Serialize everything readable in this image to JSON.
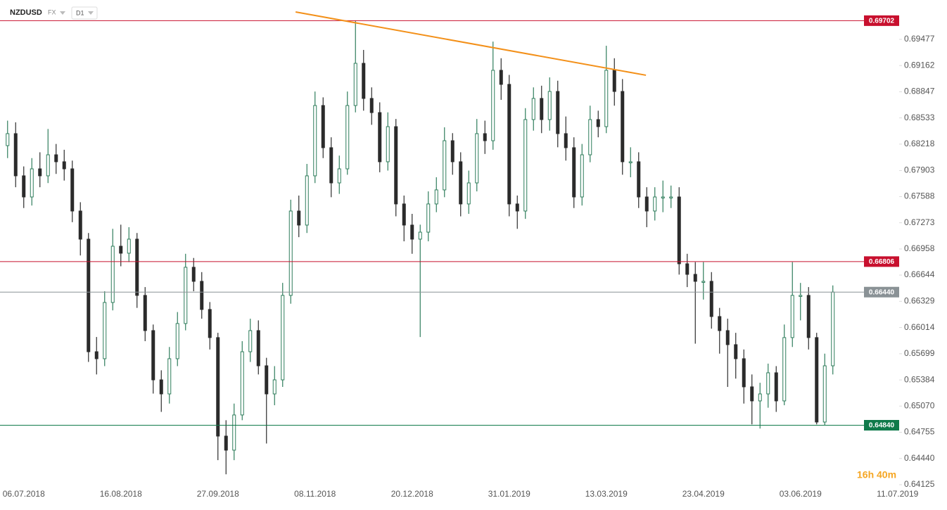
{
  "header": {
    "symbol": "NZDUSD",
    "market": "FX",
    "interval": "D1"
  },
  "countdown": "16h 40m",
  "chart_data": {
    "type": "candlestick",
    "categories": [
      null,
      null,
      "06.07.2018",
      null,
      null,
      null,
      null,
      null,
      null,
      null,
      null,
      null,
      null,
      null,
      "16.08.2018",
      null,
      null,
      null,
      null,
      null,
      null,
      null,
      null,
      null,
      null,
      null,
      "27.09.2018",
      null,
      null,
      null,
      null,
      null,
      null,
      null,
      null,
      null,
      null,
      null,
      "08.11.2018",
      null,
      null,
      null,
      null,
      null,
      null,
      null,
      null,
      null,
      null,
      null,
      "20.12.2018",
      null,
      null,
      null,
      null,
      null,
      null,
      null,
      null,
      null,
      null,
      null,
      "31.01.2019",
      null,
      null,
      null,
      null,
      null,
      null,
      null,
      null,
      null,
      null,
      null,
      "13.03.2019",
      null,
      null,
      null,
      null,
      null,
      null,
      null,
      null,
      null,
      null,
      null,
      "23.04.2019",
      null,
      null,
      null,
      null,
      null,
      null,
      null,
      null,
      null,
      null,
      null,
      "03.06.2019",
      null,
      null,
      null,
      null,
      null,
      null,
      null,
      null,
      null,
      null,
      null,
      "11.07.2019",
      null
    ],
    "open": [
      0.682,
      0.68344,
      0.67837,
      0.67583,
      0.67921,
      0.67837,
      0.6809,
      0.68006,
      0.67921,
      0.67414,
      0.67076,
      0.65723,
      0.65639,
      0.66315,
      0.66991,
      0.66907,
      0.67076,
      0.664,
      0.65977,
      0.65385,
      0.65216,
      0.65639,
      0.66062,
      0.66738,
      0.66569,
      0.66231,
      0.65893,
      0.64709,
      0.6454,
      0.64963,
      0.65723,
      0.65977,
      0.65554,
      0.65216,
      0.65385,
      0.664,
      0.67414,
      0.67245,
      0.67837,
      0.68682,
      0.68175,
      0.67752,
      0.67921,
      0.68682,
      0.69189,
      0.68767,
      0.68597,
      0.68006,
      0.68428,
      0.67499,
      0.67245,
      0.67076,
      0.6716,
      0.67499,
      0.67668,
      0.68259,
      0.68006,
      0.67499,
      0.67752,
      0.68344,
      0.68259,
      0.69105,
      0.68936,
      0.67499,
      0.67414,
      0.68513,
      0.68767,
      0.68513,
      0.68851,
      0.68344,
      0.68175,
      0.67583,
      0.6809,
      0.68513,
      0.68428,
      0.69105,
      0.68851,
      0.68006,
      0.68006,
      0.67583,
      0.67414,
      0.67583,
      0.67583,
      0.67583,
      0.6678,
      0.66653,
      0.66569,
      0.66569,
      0.66146,
      0.65977,
      0.65808,
      0.65639,
      0.65301,
      0.65132,
      0.65216,
      0.6547,
      0.65132,
      0.65893,
      0.664,
      0.664,
      0.65893,
      0.64878,
      0.65554,
      null,
      null,
      null,
      null,
      null,
      null,
      null,
      null,
      null
    ],
    "high": [
      0.685,
      0.6848,
      0.6795,
      0.6805,
      0.6812,
      0.684,
      0.6822,
      0.6815,
      0.6802,
      0.6752,
      0.6715,
      0.659,
      0.6645,
      0.672,
      0.6725,
      0.6722,
      0.6715,
      0.665,
      0.6605,
      0.655,
      0.6578,
      0.662,
      0.669,
      0.6685,
      0.6668,
      0.6632,
      0.6595,
      0.649,
      0.651,
      0.6585,
      0.6612,
      0.661,
      0.6565,
      0.6555,
      0.6655,
      0.6755,
      0.676,
      0.6798,
      0.6885,
      0.6878,
      0.683,
      0.6808,
      0.6885,
      0.697,
      0.6935,
      0.689,
      0.6872,
      0.686,
      0.6852,
      0.676,
      0.6738,
      0.6725,
      0.6765,
      0.6782,
      0.6842,
      0.6835,
      0.6812,
      0.679,
      0.6852,
      0.685,
      0.6945,
      0.6925,
      0.6905,
      0.676,
      0.6865,
      0.689,
      0.6892,
      0.6902,
      0.6898,
      0.6855,
      0.683,
      0.6822,
      0.6868,
      0.6862,
      0.694,
      0.6925,
      0.69,
      0.6818,
      0.6812,
      0.677,
      0.677,
      0.6778,
      0.6772,
      0.677,
      0.669,
      0.668,
      0.668,
      0.6668,
      0.6625,
      0.6612,
      0.6595,
      0.6575,
      0.6545,
      0.6535,
      0.6558,
      0.6555,
      0.6605,
      0.668,
      0.6655,
      0.665,
      0.6595,
      0.657,
      0.6652,
      null,
      null,
      null,
      null,
      null,
      null,
      null,
      null,
      null
    ],
    "low": [
      0.6805,
      0.677,
      0.6745,
      0.6748,
      0.677,
      0.6775,
      0.6786,
      0.6778,
      0.6728,
      0.6688,
      0.656,
      0.6545,
      0.6555,
      0.6622,
      0.6675,
      0.668,
      0.6625,
      0.6585,
      0.6522,
      0.65,
      0.651,
      0.6555,
      0.6598,
      0.6645,
      0.6612,
      0.6575,
      0.6442,
      0.6425,
      0.6442,
      0.649,
      0.656,
      0.6545,
      0.6462,
      0.6508,
      0.653,
      0.663,
      0.671,
      0.6715,
      0.6775,
      0.6805,
      0.6758,
      0.6762,
      0.6785,
      0.686,
      0.6862,
      0.6845,
      0.6788,
      0.679,
      0.6735,
      0.6705,
      0.669,
      0.659,
      0.6705,
      0.674,
      0.6758,
      0.6785,
      0.6735,
      0.6738,
      0.6765,
      0.681,
      0.6815,
      0.6875,
      0.6735,
      0.672,
      0.6732,
      0.6838,
      0.6835,
      0.6838,
      0.6818,
      0.6802,
      0.6745,
      0.6748,
      0.68,
      0.683,
      0.6835,
      0.6868,
      0.6785,
      0.6782,
      0.6745,
      0.6722,
      0.673,
      0.674,
      0.6745,
      0.6665,
      0.665,
      0.6582,
      0.6635,
      0.66,
      0.657,
      0.653,
      0.654,
      0.651,
      0.6485,
      0.648,
      0.6505,
      0.65,
      0.6508,
      0.6578,
      0.661,
      0.6575,
      0.6485,
      0.6484,
      0.6545,
      null,
      null,
      null,
      null,
      null,
      null,
      null,
      null,
      null
    ],
    "close": [
      0.68344,
      0.67837,
      0.67583,
      0.67921,
      0.67837,
      0.6809,
      0.68006,
      0.67921,
      0.67414,
      0.67076,
      0.65723,
      0.65639,
      0.66315,
      0.66991,
      0.66907,
      0.67076,
      0.664,
      0.65977,
      0.65385,
      0.65216,
      0.65639,
      0.66062,
      0.66738,
      0.66569,
      0.66231,
      0.65893,
      0.64709,
      0.6454,
      0.64963,
      0.65723,
      0.65977,
      0.65554,
      0.65216,
      0.65385,
      0.664,
      0.67414,
      0.67245,
      0.67837,
      0.68682,
      0.68175,
      0.67752,
      0.67921,
      0.68682,
      0.69189,
      0.68767,
      0.68597,
      0.68006,
      0.68428,
      0.67499,
      0.67245,
      0.67076,
      0.6716,
      0.67499,
      0.67668,
      0.68259,
      0.68006,
      0.67499,
      0.67752,
      0.68344,
      0.68259,
      0.69105,
      0.68936,
      0.67499,
      0.67414,
      0.68513,
      0.68767,
      0.68513,
      0.68851,
      0.68344,
      0.68175,
      0.67583,
      0.6809,
      0.68513,
      0.68428,
      0.69105,
      0.68851,
      0.68006,
      0.68006,
      0.67583,
      0.67414,
      0.67583,
      0.67583,
      0.67583,
      0.6678,
      0.66653,
      0.66569,
      0.66569,
      0.66146,
      0.65977,
      0.65808,
      0.65639,
      0.65301,
      0.65132,
      0.65216,
      0.6547,
      0.65132,
      0.65893,
      0.664,
      0.664,
      0.65893,
      0.64878,
      0.65554,
      0.6644,
      null,
      null,
      null,
      null,
      null,
      null,
      null,
      null,
      null
    ],
    "up_color": "#2e7d5b",
    "down_color": "#2b2b2b",
    "ylim": [
      0.6399,
      0.6995
    ],
    "yticks": [
      0.69477,
      0.69162,
      0.68847,
      0.68533,
      0.68218,
      {
        "value": 0.679,
        "label": "0.67903"
      },
      0.67588,
      0.67273,
      0.66958,
      0.66644,
      0.66329,
      0.66014,
      0.65699,
      0.65384,
      {
        "value": 0.6507,
        "label": "0.65070"
      },
      0.64755,
      {
        "value": 0.6444,
        "label": "0.64440"
      },
      0.64125
    ],
    "levels": [
      {
        "value": 0.69702,
        "label": "0.69702",
        "color": "#c8102e"
      },
      {
        "value": 0.66806,
        "label": "0.66806",
        "color": "#c8102e"
      },
      {
        "value": 0.6644,
        "label": "0.66440",
        "color": "#8a9296"
      },
      {
        "value": 0.6484,
        "label": "0.64840",
        "color": "#0f7a4a"
      }
    ],
    "trendline": {
      "x": [
        35.6,
        78.9
      ],
      "y": [
        0.69806,
        0.69046
      ],
      "color": "#f39019"
    }
  }
}
